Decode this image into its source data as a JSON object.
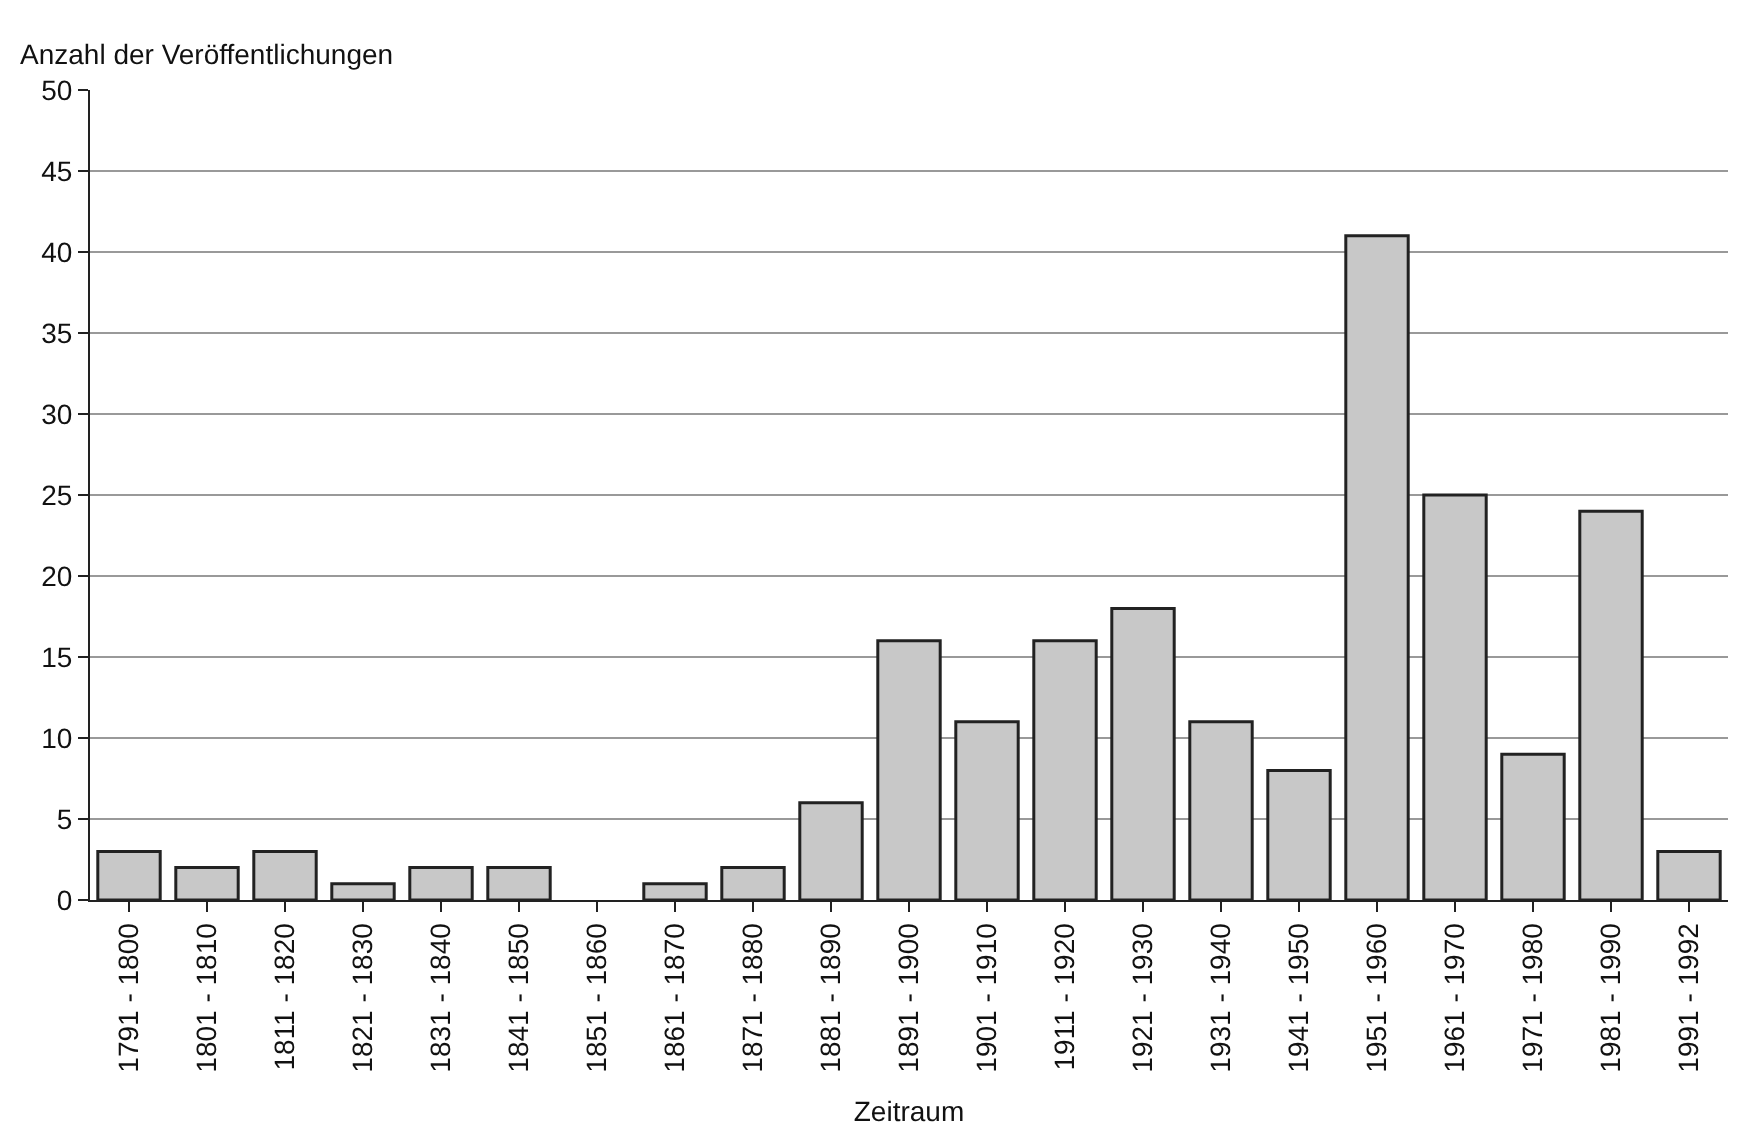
{
  "chart_data": {
    "type": "bar",
    "ylabel": "Anzahl der Veröffentlichungen",
    "xlabel": "Zeitraum",
    "categories": [
      "1791 - 1800",
      "1801 - 1810",
      "1811 - 1820",
      "1821 - 1830",
      "1831 - 1840",
      "1841 - 1850",
      "1851 - 1860",
      "1861 - 1870",
      "1871 - 1880",
      "1881 - 1890",
      "1891 - 1900",
      "1901 - 1910",
      "1911 - 1920",
      "1921 - 1930",
      "1931 - 1940",
      "1941 - 1950",
      "1951 - 1960",
      "1961 - 1970",
      "1971 - 1980",
      "1981 - 1990",
      "1991 - 1992"
    ],
    "values": [
      3,
      2,
      3,
      1,
      2,
      2,
      0,
      1,
      2,
      6,
      16,
      11,
      16,
      18,
      11,
      8,
      41,
      25,
      9,
      24,
      3
    ],
    "color": "#c8c8c8",
    "ylim": [
      0,
      50
    ],
    "yticks": [
      0,
      5,
      10,
      15,
      20,
      25,
      30,
      35,
      40,
      45,
      50
    ],
    "grid": "y"
  }
}
